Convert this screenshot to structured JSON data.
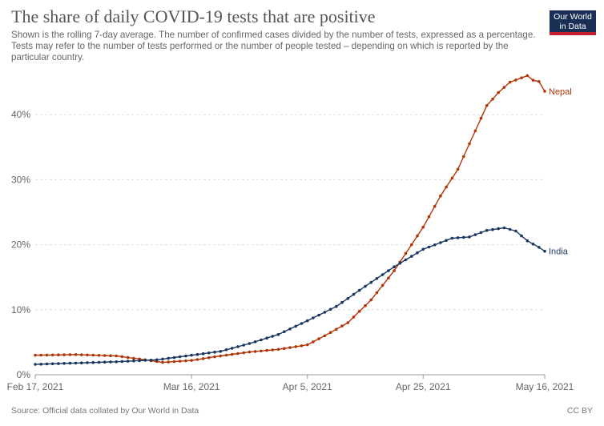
{
  "header": {
    "title": "The share of daily COVID-19 tests that are positive",
    "subtitle": "Shown is the rolling 7-day average. The number of confirmed cases divided by the number of tests, expressed as a percentage. Tests may refer to the number of tests performed or the number of people tested – depending on which is reported by the particular country."
  },
  "logo": {
    "line1": "Our World",
    "line2": "in Data"
  },
  "footer": {
    "source": "Source: Official data collated by Our World in Data",
    "license": "CC BY"
  },
  "chart_data": {
    "type": "line",
    "title": "The share of daily COVID-19 tests that are positive",
    "xlabel": "",
    "ylabel": "",
    "x_range": [
      "2021-02-17",
      "2021-05-16"
    ],
    "ylim": [
      0,
      45
    ],
    "y_ticks": [
      0,
      10,
      20,
      30,
      40
    ],
    "y_tick_labels": [
      "0%",
      "10%",
      "20%",
      "30%",
      "40%"
    ],
    "x_ticks": [
      "2021-02-17",
      "2021-03-16",
      "2021-04-05",
      "2021-04-25",
      "2021-05-16"
    ],
    "x_tick_labels": [
      "Feb 17, 2021",
      "Mar 16, 2021",
      "Apr 5, 2021",
      "Apr 25, 2021",
      "May 16, 2021"
    ],
    "grid": "horizontal",
    "legend": "line-end labels",
    "series": [
      {
        "name": "Nepal",
        "color": "#b13507",
        "values": [
          [
            "2021-02-17",
            3.0
          ],
          [
            "2021-02-24",
            3.1
          ],
          [
            "2021-03-03",
            2.9
          ],
          [
            "2021-03-08",
            2.3
          ],
          [
            "2021-03-11",
            1.9
          ],
          [
            "2021-03-16",
            2.2
          ],
          [
            "2021-03-21",
            2.9
          ],
          [
            "2021-03-26",
            3.5
          ],
          [
            "2021-03-31",
            3.9
          ],
          [
            "2021-04-05",
            4.6
          ],
          [
            "2021-04-08",
            6.0
          ],
          [
            "2021-04-12",
            8.0
          ],
          [
            "2021-04-16",
            11.5
          ],
          [
            "2021-04-20",
            16.0
          ],
          [
            "2021-04-23",
            20.0
          ],
          [
            "2021-04-25",
            22.7
          ],
          [
            "2021-04-28",
            27.5
          ],
          [
            "2021-05-01",
            31.6
          ],
          [
            "2021-05-04",
            37.5
          ],
          [
            "2021-05-06",
            41.4
          ],
          [
            "2021-05-08",
            43.4
          ],
          [
            "2021-05-10",
            45.0
          ],
          [
            "2021-05-13",
            46.0
          ],
          [
            "2021-05-14",
            45.3
          ],
          [
            "2021-05-15",
            45.1
          ],
          [
            "2021-05-16",
            43.6
          ]
        ]
      },
      {
        "name": "India",
        "color": "#18375f",
        "values": [
          [
            "2021-02-17",
            1.6
          ],
          [
            "2021-02-24",
            1.8
          ],
          [
            "2021-03-03",
            2.0
          ],
          [
            "2021-03-10",
            2.3
          ],
          [
            "2021-03-16",
            3.0
          ],
          [
            "2021-03-21",
            3.6
          ],
          [
            "2021-03-26",
            4.8
          ],
          [
            "2021-03-31",
            6.2
          ],
          [
            "2021-04-05",
            8.3
          ],
          [
            "2021-04-10",
            10.5
          ],
          [
            "2021-04-15",
            13.6
          ],
          [
            "2021-04-20",
            16.6
          ],
          [
            "2021-04-25",
            19.3
          ],
          [
            "2021-04-30",
            21.0
          ],
          [
            "2021-05-03",
            21.2
          ],
          [
            "2021-05-06",
            22.2
          ],
          [
            "2021-05-09",
            22.6
          ],
          [
            "2021-05-11",
            22.1
          ],
          [
            "2021-05-13",
            20.6
          ],
          [
            "2021-05-15",
            19.6
          ],
          [
            "2021-05-16",
            19.0
          ]
        ]
      }
    ]
  }
}
